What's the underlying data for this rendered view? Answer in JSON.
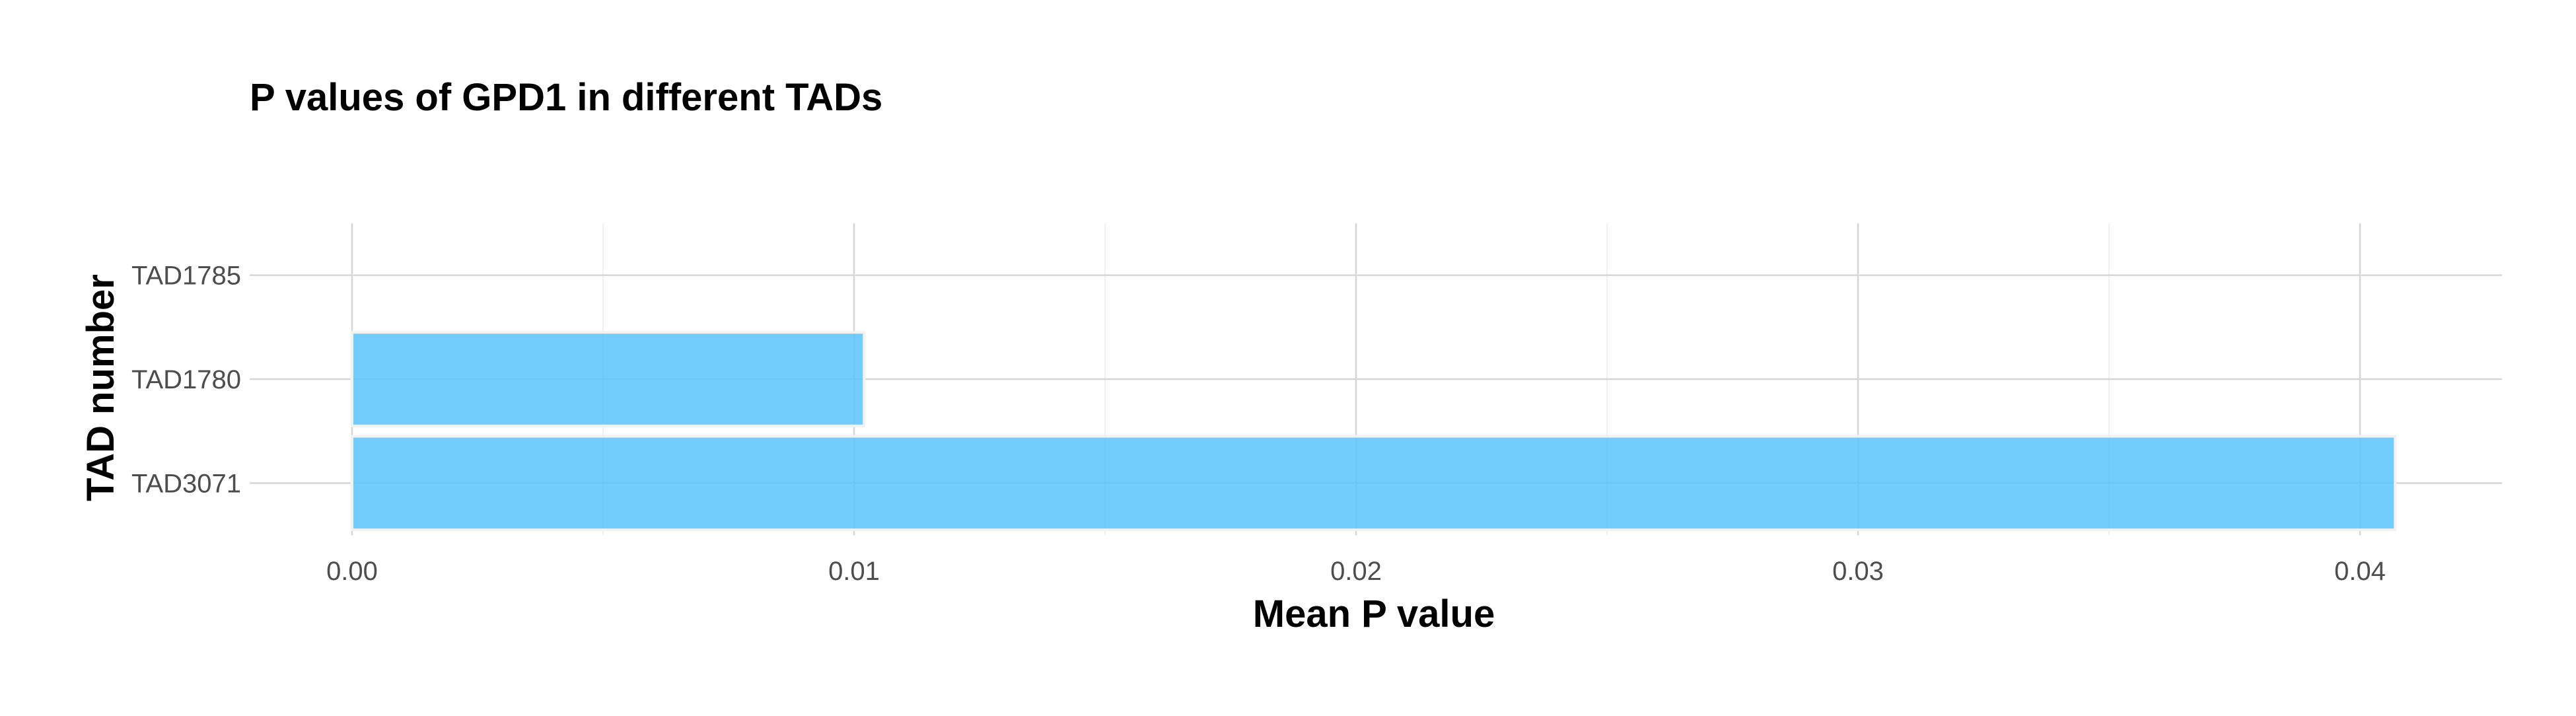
{
  "chart_data": {
    "type": "bar",
    "orientation": "horizontal",
    "title": "P values of GPD1 in different TADs",
    "xlabel": "Mean P value",
    "ylabel": "TAD number",
    "categories": [
      "TAD1785",
      "TAD1780",
      "TAD3071"
    ],
    "values": [
      0.0,
      0.0102,
      0.0407
    ],
    "xlim": [
      -0.002,
      0.0428
    ],
    "x_ticks": [
      0.0,
      0.01,
      0.02,
      0.03,
      0.04
    ],
    "x_tick_labels": [
      "0.00",
      "0.01",
      "0.02",
      "0.03",
      "0.04"
    ],
    "grid": true,
    "legend": "none",
    "bar_color": "#5bc4fb"
  }
}
